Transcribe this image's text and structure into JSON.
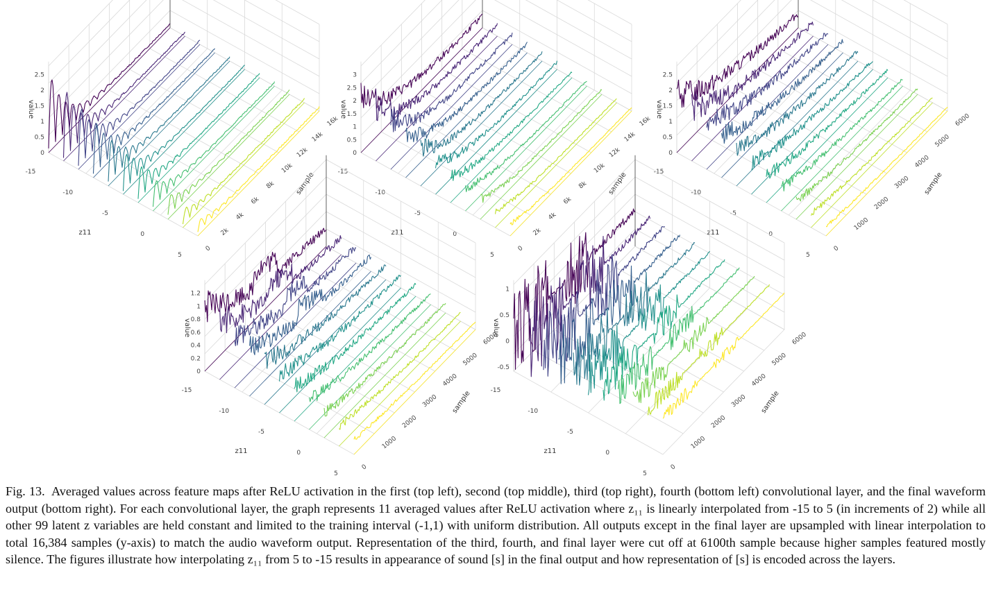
{
  "caption": {
    "label": "Fig. 13.",
    "text": "Averaged values across feature maps after ReLU activation in the first (top left), second (top middle), third (top right), fourth (bottom left) convolutional layer, and the final waveform output (bottom right). For each convolutional layer, the graph represents 11 averaged values after ReLU activation where z₁₁ is linearly interpolated from -15 to 5 (in increments of 2) while all other 99 latent z variables are held constant and limited to the training interval (-1,1) with uniform distribution. All outputs except in the final layer are upsampled with linear interpolation to total 16,384 samples (y-axis) to match the audio waveform output. Representation of the third, fourth, and final layer were cut off at 6100th sample because higher samples featured mostly silence. The figures illustrate how interpolating z₁₁ from 5 to -15 results in appearance of sound [s] in the final output and how representation of [s] is encoded across the layers."
  },
  "chart_data": [
    {
      "type": "line",
      "panel": "top-left",
      "xlabel": "sample",
      "ylabel": "z11",
      "zlabel": "value",
      "z11_values": [
        -15,
        -13,
        -11,
        -9,
        -7,
        -5,
        -3,
        -1,
        1,
        3,
        5
      ],
      "z11_ticks": [
        "-15",
        "-10",
        "-5",
        "0",
        "5"
      ],
      "sample_ticks": [
        "0",
        "2k",
        "4k",
        "6k",
        "8k",
        "10k",
        "12k",
        "14k",
        "16k"
      ],
      "value_ticks": [
        "0",
        "0.5",
        "1",
        "1.5",
        "2",
        "2.5"
      ],
      "xlim": [
        0,
        16384
      ],
      "zlim": [
        0,
        2.8
      ],
      "peak_values": [
        2.6,
        2.4,
        2.1,
        1.8,
        1.5,
        1.3,
        1.1,
        0.9,
        0.7,
        0.5,
        0.4
      ]
    },
    {
      "type": "line",
      "panel": "top-middle",
      "xlabel": "sample",
      "ylabel": "z11",
      "zlabel": "value",
      "z11_values": [
        -15,
        -13,
        -11,
        -9,
        -7,
        -5,
        -3,
        -1,
        1,
        3,
        5
      ],
      "z11_ticks": [
        "-15",
        "-10",
        "-5",
        "0",
        "5"
      ],
      "sample_ticks": [
        "0",
        "2k",
        "4k",
        "6k",
        "8k",
        "10k",
        "12k",
        "14k",
        "16k"
      ],
      "value_ticks": [
        "0",
        "0.5",
        "1",
        "1.5",
        "2",
        "2.5",
        "3"
      ],
      "xlim": [
        0,
        16384
      ],
      "zlim": [
        0,
        3.3
      ],
      "peak_values": [
        3.1,
        2.8,
        2.5,
        2.2,
        1.9,
        1.6,
        1.3,
        1.1,
        0.9,
        0.7,
        0.5
      ]
    },
    {
      "type": "line",
      "panel": "top-right",
      "xlabel": "sample",
      "ylabel": "z11",
      "zlabel": "value",
      "z11_values": [
        -15,
        -13,
        -11,
        -9,
        -7,
        -5,
        -3,
        -1,
        1,
        3,
        5
      ],
      "z11_ticks": [
        "-15",
        "-10",
        "-5",
        "0",
        "5"
      ],
      "sample_ticks": [
        "0",
        "1000",
        "2000",
        "3000",
        "4000",
        "5000",
        "6000"
      ],
      "value_ticks": [
        "0",
        "0.5",
        "1",
        "1.5",
        "2",
        "2.5"
      ],
      "xlim": [
        0,
        6100
      ],
      "zlim": [
        0,
        2.8
      ],
      "peak_values": [
        2.4,
        2.2,
        2.0,
        1.8,
        1.5,
        1.3,
        1.1,
        0.9,
        0.7,
        0.5,
        0.3
      ]
    },
    {
      "type": "line",
      "panel": "bottom-left",
      "xlabel": "sample",
      "ylabel": "z11",
      "zlabel": "value",
      "z11_values": [
        -15,
        -13,
        -11,
        -9,
        -7,
        -5,
        -3,
        -1,
        1,
        3,
        5
      ],
      "z11_ticks": [
        "-15",
        "-10",
        "-5",
        "0",
        "5"
      ],
      "sample_ticks": [
        "0",
        "1000",
        "2000",
        "3000",
        "4000",
        "5000",
        "6000"
      ],
      "value_ticks": [
        "0",
        "0.2",
        "0.4",
        "0.6",
        "0.8",
        "1",
        "1.2"
      ],
      "xlim": [
        0,
        6100
      ],
      "zlim": [
        0,
        1.3
      ],
      "peak_values": [
        1.2,
        1.1,
        1.0,
        0.9,
        0.8,
        0.7,
        0.6,
        0.5,
        0.4,
        0.3,
        0.2
      ]
    },
    {
      "type": "line",
      "panel": "bottom-right",
      "xlabel": "sample",
      "ylabel": "z11",
      "zlabel": "value",
      "z11_values": [
        -15,
        -13,
        -11,
        -9,
        -7,
        -5,
        -3,
        -1,
        1,
        3,
        5
      ],
      "z11_ticks": [
        "-15",
        "-10",
        "-5",
        "0",
        "5"
      ],
      "sample_ticks": [
        "0",
        "1000",
        "2000",
        "3000",
        "4000",
        "5000",
        "6000"
      ],
      "value_ticks": [
        "-0.5",
        "0",
        "0.5",
        "1"
      ],
      "xlim": [
        0,
        6100
      ],
      "zlim": [
        -0.8,
        1.1
      ],
      "peak_values": [
        1.0,
        0.95,
        0.9,
        0.85,
        0.8,
        0.75,
        0.7,
        0.65,
        0.6,
        0.55,
        0.5
      ]
    }
  ],
  "colors": {
    "viridis": [
      "#440154",
      "#482475",
      "#414487",
      "#355f8d",
      "#2a788e",
      "#21918c",
      "#22a884",
      "#44bf70",
      "#7ad151",
      "#bddf26",
      "#fde725"
    ]
  }
}
